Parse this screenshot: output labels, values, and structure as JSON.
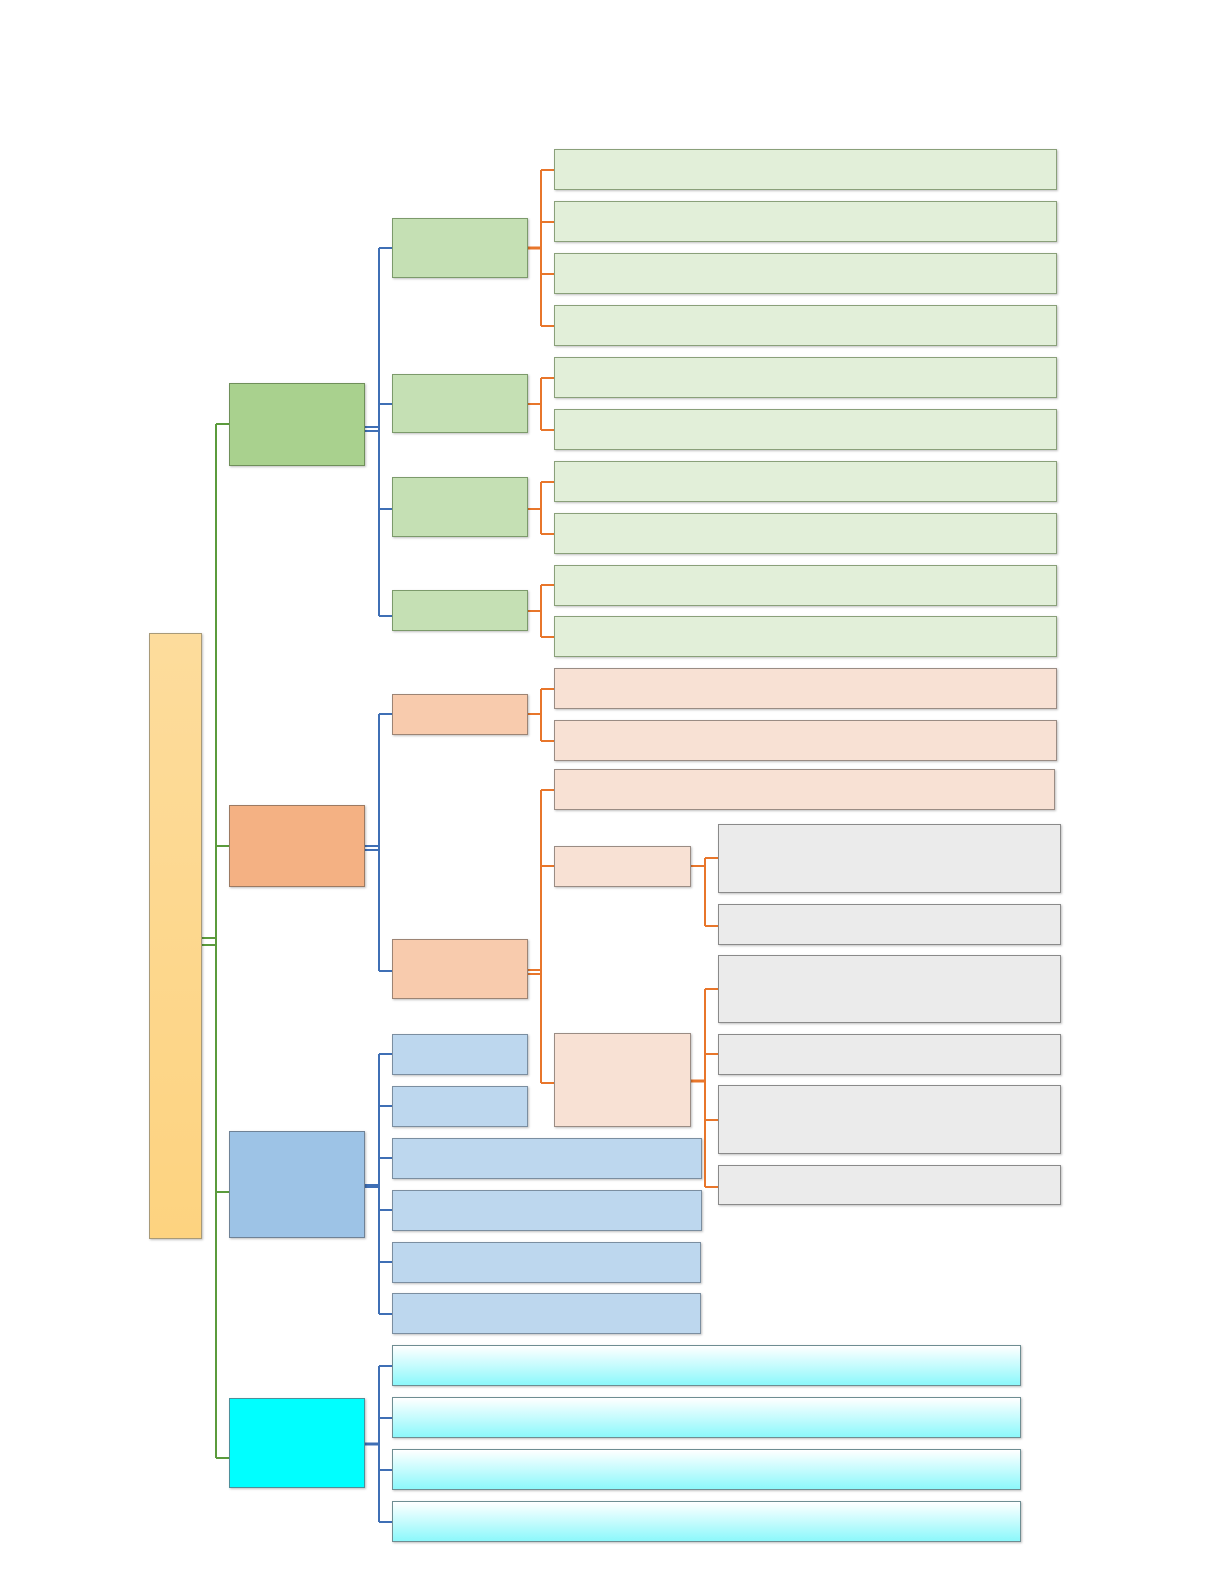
{
  "diagram": {
    "type": "tree-mindmap",
    "colors": {
      "root": "#fdd78f",
      "branch_green": "#a9d18e",
      "branch_orange": "#f4b183",
      "branch_blue": "#9dc3e6",
      "branch_cyan": "#00ffff",
      "connector_green": "#5b9b3c",
      "connector_blue": "#3f6fb5",
      "connector_orange": "#e8762b"
    },
    "nodes_text": {
      "root": "",
      "green_branch": "",
      "orange_branch": "",
      "blue_branch": "",
      "cyan_branch": ""
    }
  }
}
